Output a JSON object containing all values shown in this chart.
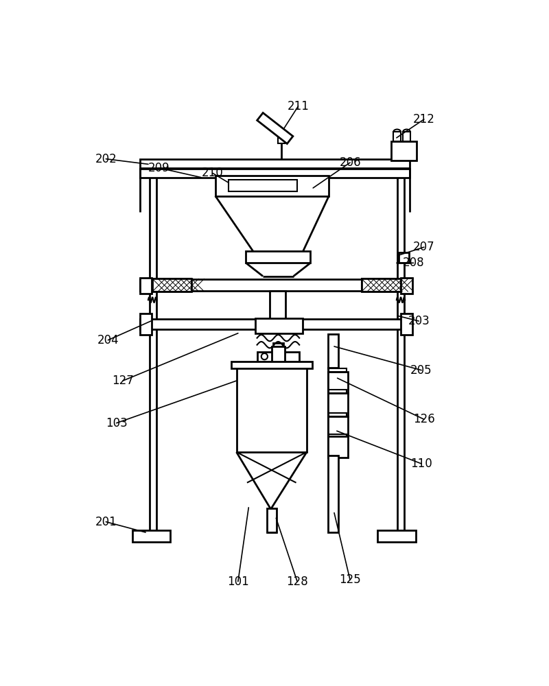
{
  "bg_color": "#ffffff",
  "lw": 1.5,
  "lw2": 2.0,
  "labels_data": [
    [
      "202",
      68,
      855,
      148,
      845
    ],
    [
      "209",
      168,
      838,
      248,
      820
    ],
    [
      "210",
      270,
      828,
      300,
      810
    ],
    [
      "211",
      432,
      955,
      400,
      905
    ],
    [
      "206",
      530,
      848,
      460,
      800
    ],
    [
      "212",
      670,
      930,
      618,
      895
    ],
    [
      "207",
      670,
      688,
      620,
      672
    ],
    [
      "208",
      650,
      658,
      618,
      658
    ],
    [
      "203",
      660,
      548,
      620,
      558
    ],
    [
      "204",
      72,
      512,
      153,
      548
    ],
    [
      "205",
      665,
      455,
      500,
      500
    ],
    [
      "127",
      100,
      435,
      318,
      525
    ],
    [
      "126",
      670,
      362,
      506,
      440
    ],
    [
      "103",
      88,
      355,
      315,
      435
    ],
    [
      "110",
      665,
      278,
      505,
      340
    ],
    [
      "201",
      68,
      168,
      143,
      148
    ],
    [
      "101",
      318,
      55,
      338,
      195
    ],
    [
      "128",
      430,
      55,
      390,
      175
    ],
    [
      "125",
      530,
      58,
      500,
      185
    ]
  ]
}
